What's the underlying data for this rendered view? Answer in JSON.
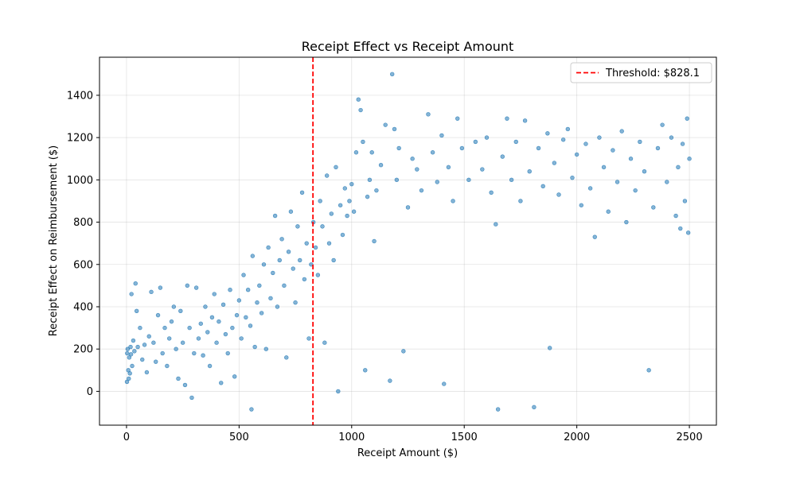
{
  "chart_data": {
    "type": "scatter",
    "title": "Receipt Effect vs Receipt Amount",
    "xlabel": "Receipt Amount ($)",
    "ylabel": "Receipt Effect on Reimbursement ($)",
    "xlim": [
      -120,
      2620
    ],
    "ylim": [
      -160,
      1580
    ],
    "xticks": [
      0,
      500,
      1000,
      1500,
      2000,
      2500
    ],
    "yticks": [
      0,
      200,
      400,
      600,
      800,
      1000,
      1200,
      1400
    ],
    "grid": true,
    "legend_position": "top-right",
    "threshold": {
      "x": 828.1,
      "label": "Threshold: $828.1",
      "color": "#ff0000",
      "style": "dashed"
    },
    "point_color": "#1f77b4",
    "series": [
      {
        "points": [
          [
            2,
            45
          ],
          [
            3,
            180
          ],
          [
            5,
            200
          ],
          [
            8,
            100
          ],
          [
            10,
            60
          ],
          [
            12,
            160
          ],
          [
            15,
            85
          ],
          [
            18,
            210
          ],
          [
            20,
            175
          ],
          [
            22,
            460
          ],
          [
            25,
            120
          ],
          [
            30,
            240
          ],
          [
            35,
            190
          ],
          [
            40,
            510
          ],
          [
            45,
            380
          ],
          [
            50,
            210
          ],
          [
            60,
            300
          ],
          [
            70,
            150
          ],
          [
            80,
            220
          ],
          [
            90,
            90
          ],
          [
            100,
            260
          ],
          [
            110,
            470
          ],
          [
            120,
            230
          ],
          [
            130,
            140
          ],
          [
            140,
            360
          ],
          [
            150,
            490
          ],
          [
            160,
            180
          ],
          [
            170,
            300
          ],
          [
            180,
            120
          ],
          [
            190,
            250
          ],
          [
            200,
            330
          ],
          [
            210,
            400
          ],
          [
            220,
            200
          ],
          [
            230,
            60
          ],
          [
            240,
            380
          ],
          [
            250,
            230
          ],
          [
            260,
            30
          ],
          [
            270,
            500
          ],
          [
            280,
            300
          ],
          [
            290,
            -30
          ],
          [
            300,
            180
          ],
          [
            310,
            490
          ],
          [
            320,
            250
          ],
          [
            330,
            320
          ],
          [
            340,
            170
          ],
          [
            350,
            400
          ],
          [
            360,
            280
          ],
          [
            370,
            120
          ],
          [
            380,
            350
          ],
          [
            390,
            460
          ],
          [
            400,
            230
          ],
          [
            410,
            330
          ],
          [
            420,
            40
          ],
          [
            430,
            410
          ],
          [
            440,
            270
          ],
          [
            450,
            180
          ],
          [
            460,
            480
          ],
          [
            470,
            300
          ],
          [
            480,
            70
          ],
          [
            490,
            360
          ],
          [
            500,
            430
          ],
          [
            510,
            250
          ],
          [
            520,
            550
          ],
          [
            530,
            350
          ],
          [
            540,
            480
          ],
          [
            550,
            310
          ],
          [
            555,
            -85
          ],
          [
            560,
            640
          ],
          [
            570,
            210
          ],
          [
            580,
            420
          ],
          [
            590,
            500
          ],
          [
            600,
            370
          ],
          [
            610,
            600
          ],
          [
            620,
            200
          ],
          [
            630,
            680
          ],
          [
            640,
            440
          ],
          [
            650,
            560
          ],
          [
            660,
            830
          ],
          [
            670,
            400
          ],
          [
            680,
            620
          ],
          [
            690,
            720
          ],
          [
            700,
            500
          ],
          [
            710,
            160
          ],
          [
            720,
            660
          ],
          [
            730,
            850
          ],
          [
            740,
            580
          ],
          [
            750,
            420
          ],
          [
            760,
            780
          ],
          [
            770,
            620
          ],
          [
            780,
            940
          ],
          [
            790,
            530
          ],
          [
            800,
            700
          ],
          [
            810,
            250
          ],
          [
            820,
            600
          ],
          [
            830,
            800
          ],
          [
            840,
            680
          ],
          [
            850,
            550
          ],
          [
            860,
            900
          ],
          [
            870,
            780
          ],
          [
            880,
            230
          ],
          [
            890,
            1020
          ],
          [
            900,
            700
          ],
          [
            910,
            840
          ],
          [
            920,
            620
          ],
          [
            930,
            1060
          ],
          [
            940,
            0
          ],
          [
            950,
            880
          ],
          [
            960,
            740
          ],
          [
            970,
            960
          ],
          [
            980,
            830
          ],
          [
            990,
            900
          ],
          [
            1000,
            980
          ],
          [
            1010,
            850
          ],
          [
            1020,
            1130
          ],
          [
            1030,
            1380
          ],
          [
            1040,
            1330
          ],
          [
            1050,
            1180
          ],
          [
            1060,
            100
          ],
          [
            1070,
            920
          ],
          [
            1080,
            1000
          ],
          [
            1090,
            1130
          ],
          [
            1100,
            710
          ],
          [
            1110,
            950
          ],
          [
            1130,
            1070
          ],
          [
            1150,
            1260
          ],
          [
            1170,
            50
          ],
          [
            1180,
            1500
          ],
          [
            1190,
            1240
          ],
          [
            1200,
            1000
          ],
          [
            1210,
            1150
          ],
          [
            1230,
            190
          ],
          [
            1250,
            870
          ],
          [
            1270,
            1100
          ],
          [
            1290,
            1050
          ],
          [
            1310,
            950
          ],
          [
            1340,
            1310
          ],
          [
            1360,
            1130
          ],
          [
            1380,
            990
          ],
          [
            1400,
            1210
          ],
          [
            1410,
            35
          ],
          [
            1430,
            1060
          ],
          [
            1450,
            900
          ],
          [
            1470,
            1290
          ],
          [
            1490,
            1150
          ],
          [
            1520,
            1000
          ],
          [
            1550,
            1180
          ],
          [
            1580,
            1050
          ],
          [
            1600,
            1200
          ],
          [
            1620,
            940
          ],
          [
            1640,
            790
          ],
          [
            1650,
            -85
          ],
          [
            1670,
            1110
          ],
          [
            1690,
            1290
          ],
          [
            1710,
            1000
          ],
          [
            1730,
            1180
          ],
          [
            1750,
            900
          ],
          [
            1770,
            1280
          ],
          [
            1790,
            1040
          ],
          [
            1810,
            -75
          ],
          [
            1830,
            1150
          ],
          [
            1850,
            970
          ],
          [
            1870,
            1220
          ],
          [
            1880,
            205
          ],
          [
            1900,
            1080
          ],
          [
            1920,
            930
          ],
          [
            1940,
            1190
          ],
          [
            1960,
            1240
          ],
          [
            1980,
            1010
          ],
          [
            2000,
            1120
          ],
          [
            2020,
            880
          ],
          [
            2040,
            1170
          ],
          [
            2060,
            960
          ],
          [
            2080,
            730
          ],
          [
            2100,
            1200
          ],
          [
            2120,
            1060
          ],
          [
            2140,
            850
          ],
          [
            2160,
            1140
          ],
          [
            2180,
            990
          ],
          [
            2200,
            1230
          ],
          [
            2220,
            800
          ],
          [
            2240,
            1100
          ],
          [
            2260,
            950
          ],
          [
            2280,
            1180
          ],
          [
            2300,
            1040
          ],
          [
            2320,
            100
          ],
          [
            2340,
            870
          ],
          [
            2360,
            1150
          ],
          [
            2380,
            1260
          ],
          [
            2400,
            990
          ],
          [
            2420,
            1200
          ],
          [
            2440,
            830
          ],
          [
            2450,
            1060
          ],
          [
            2460,
            770
          ],
          [
            2470,
            1170
          ],
          [
            2480,
            900
          ],
          [
            2490,
            1290
          ],
          [
            2495,
            750
          ],
          [
            2500,
            1100
          ]
        ]
      }
    ]
  }
}
